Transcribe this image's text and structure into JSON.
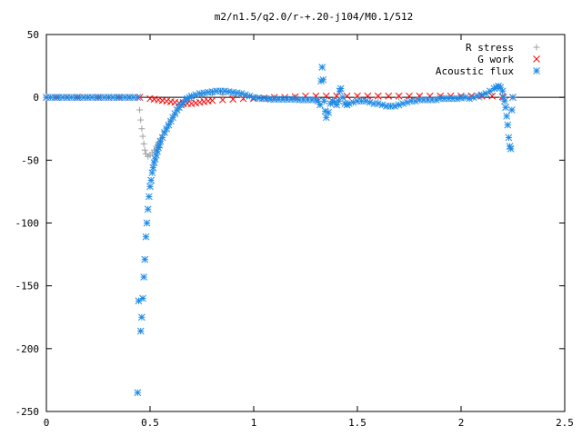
{
  "chart_data": {
    "type": "scatter",
    "title": "m2/n1.5/q2.0/r-+.20-j104/M0.1/512",
    "xlim": [
      0,
      2.5
    ],
    "ylim": [
      -250,
      50
    ],
    "x_ticks": [
      0,
      0.5,
      1,
      1.5,
      2,
      2.5
    ],
    "x_tick_labels": [
      "0",
      "0.5",
      "1",
      "1.5",
      "2",
      "2.5"
    ],
    "y_ticks": [
      50,
      0,
      -50,
      -100,
      -150,
      -200,
      -250
    ],
    "y_tick_labels": [
      "50",
      "0",
      "-50",
      "-100",
      "-150",
      "-200",
      "-250"
    ],
    "grid": false,
    "legend_position": "top-right",
    "series": [
      {
        "name": "R stress",
        "marker": "plus",
        "color": "#a0a0a0",
        "points": [
          [
            0.0,
            0
          ],
          [
            0.05,
            0
          ],
          [
            0.1,
            0
          ],
          [
            0.15,
            0
          ],
          [
            0.2,
            0
          ],
          [
            0.25,
            0
          ],
          [
            0.3,
            0
          ],
          [
            0.35,
            0
          ],
          [
            0.4,
            0
          ],
          [
            0.44,
            0
          ],
          [
            0.45,
            -10
          ],
          [
            0.455,
            -18
          ],
          [
            0.46,
            -25
          ],
          [
            0.465,
            -31
          ],
          [
            0.47,
            -37
          ],
          [
            0.475,
            -42
          ],
          [
            0.48,
            -45
          ],
          [
            0.49,
            -47
          ],
          [
            0.5,
            -46
          ],
          [
            0.51,
            -44
          ],
          [
            0.52,
            -42
          ],
          [
            0.53,
            -39
          ],
          [
            0.54,
            -36
          ],
          [
            0.55,
            -33
          ],
          [
            0.56,
            -30
          ],
          [
            0.57,
            -27
          ],
          [
            0.58,
            -24
          ],
          [
            0.59,
            -21
          ],
          [
            0.6,
            -18
          ],
          [
            0.62,
            -14
          ],
          [
            0.64,
            -10
          ],
          [
            0.66,
            -6
          ],
          [
            0.68,
            -3
          ],
          [
            0.7,
            -1
          ],
          [
            0.75,
            1
          ],
          [
            0.8,
            2
          ],
          [
            0.85,
            2
          ],
          [
            0.9,
            1
          ],
          [
            0.95,
            0
          ],
          [
            1.0,
            0
          ],
          [
            1.1,
            0
          ],
          [
            1.2,
            0
          ],
          [
            1.3,
            0
          ],
          [
            1.4,
            0
          ],
          [
            1.5,
            0
          ],
          [
            1.6,
            0
          ],
          [
            1.7,
            0
          ],
          [
            1.8,
            0
          ],
          [
            1.9,
            0
          ],
          [
            2.0,
            0
          ],
          [
            2.1,
            0
          ],
          [
            2.2,
            0
          ],
          [
            2.25,
            0
          ]
        ]
      },
      {
        "name": "G work",
        "marker": "cross",
        "color": "#ff0000",
        "points": [
          [
            0.0,
            0
          ],
          [
            0.05,
            0
          ],
          [
            0.1,
            0
          ],
          [
            0.15,
            0
          ],
          [
            0.2,
            0
          ],
          [
            0.25,
            0
          ],
          [
            0.3,
            0
          ],
          [
            0.35,
            0
          ],
          [
            0.4,
            0
          ],
          [
            0.45,
            0
          ],
          [
            0.5,
            -1
          ],
          [
            0.52,
            -1.5
          ],
          [
            0.54,
            -2
          ],
          [
            0.56,
            -2.5
          ],
          [
            0.58,
            -3
          ],
          [
            0.6,
            -3.5
          ],
          [
            0.62,
            -4
          ],
          [
            0.64,
            -4.5
          ],
          [
            0.66,
            -5
          ],
          [
            0.68,
            -5
          ],
          [
            0.7,
            -5
          ],
          [
            0.72,
            -4.5
          ],
          [
            0.74,
            -4
          ],
          [
            0.76,
            -3.5
          ],
          [
            0.78,
            -3
          ],
          [
            0.8,
            -2.5
          ],
          [
            0.85,
            -2
          ],
          [
            0.9,
            -1.5
          ],
          [
            0.95,
            -1
          ],
          [
            1.0,
            -1
          ],
          [
            1.05,
            -0.5
          ],
          [
            1.1,
            0
          ],
          [
            1.15,
            0
          ],
          [
            1.2,
            0.5
          ],
          [
            1.25,
            1
          ],
          [
            1.3,
            1
          ],
          [
            1.35,
            1
          ],
          [
            1.4,
            1
          ],
          [
            1.45,
            1
          ],
          [
            1.5,
            1
          ],
          [
            1.55,
            1
          ],
          [
            1.6,
            1
          ],
          [
            1.65,
            1
          ],
          [
            1.7,
            1
          ],
          [
            1.75,
            1
          ],
          [
            1.8,
            1
          ],
          [
            1.85,
            1
          ],
          [
            1.9,
            1
          ],
          [
            1.95,
            1
          ],
          [
            2.0,
            1
          ],
          [
            2.05,
            1
          ],
          [
            2.1,
            1
          ],
          [
            2.15,
            1
          ],
          [
            2.2,
            0.5
          ],
          [
            2.25,
            0
          ]
        ]
      },
      {
        "name": "Acoustic flux",
        "marker": "star",
        "color": "#1e8ae6",
        "points": [
          [
            0.0,
            0
          ],
          [
            0.02,
            0
          ],
          [
            0.04,
            0
          ],
          [
            0.06,
            0
          ],
          [
            0.08,
            0
          ],
          [
            0.1,
            0
          ],
          [
            0.12,
            0
          ],
          [
            0.14,
            0
          ],
          [
            0.16,
            0
          ],
          [
            0.18,
            0
          ],
          [
            0.2,
            0
          ],
          [
            0.22,
            0
          ],
          [
            0.24,
            0
          ],
          [
            0.26,
            0
          ],
          [
            0.28,
            0
          ],
          [
            0.3,
            0
          ],
          [
            0.32,
            0
          ],
          [
            0.34,
            0
          ],
          [
            0.36,
            0
          ],
          [
            0.38,
            0
          ],
          [
            0.4,
            0
          ],
          [
            0.42,
            0
          ],
          [
            0.44,
            0
          ],
          [
            0.44,
            -235
          ],
          [
            0.445,
            -162
          ],
          [
            0.455,
            -186
          ],
          [
            0.46,
            -175
          ],
          [
            0.465,
            -160
          ],
          [
            0.47,
            -143
          ],
          [
            0.475,
            -129
          ],
          [
            0.48,
            -111
          ],
          [
            0.485,
            -100
          ],
          [
            0.49,
            -89
          ],
          [
            0.495,
            -79
          ],
          [
            0.5,
            -71
          ],
          [
            0.505,
            -66
          ],
          [
            0.51,
            -60
          ],
          [
            0.515,
            -56
          ],
          [
            0.52,
            -52
          ],
          [
            0.525,
            -49
          ],
          [
            0.53,
            -46
          ],
          [
            0.535,
            -43
          ],
          [
            0.54,
            -40
          ],
          [
            0.545,
            -38
          ],
          [
            0.55,
            -35
          ],
          [
            0.56,
            -32
          ],
          [
            0.57,
            -28
          ],
          [
            0.58,
            -25
          ],
          [
            0.59,
            -22
          ],
          [
            0.6,
            -19
          ],
          [
            0.61,
            -16
          ],
          [
            0.62,
            -13
          ],
          [
            0.63,
            -10
          ],
          [
            0.64,
            -8
          ],
          [
            0.65,
            -6
          ],
          [
            0.66,
            -4
          ],
          [
            0.67,
            -2
          ],
          [
            0.68,
            -1
          ],
          [
            0.69,
            0
          ],
          [
            0.7,
            1
          ],
          [
            0.72,
            2
          ],
          [
            0.74,
            3
          ],
          [
            0.76,
            3.5
          ],
          [
            0.78,
            4
          ],
          [
            0.8,
            4.5
          ],
          [
            0.82,
            5
          ],
          [
            0.84,
            5
          ],
          [
            0.86,
            5
          ],
          [
            0.88,
            4.5
          ],
          [
            0.9,
            4
          ],
          [
            0.92,
            3.5
          ],
          [
            0.94,
            3
          ],
          [
            0.96,
            2
          ],
          [
            0.98,
            1
          ],
          [
            1.0,
            0
          ],
          [
            1.02,
            -0.5
          ],
          [
            1.04,
            -1
          ],
          [
            1.06,
            -1
          ],
          [
            1.08,
            -1.5
          ],
          [
            1.1,
            -1.5
          ],
          [
            1.12,
            -1.5
          ],
          [
            1.14,
            -1.5
          ],
          [
            1.16,
            -1.5
          ],
          [
            1.18,
            -1.5
          ],
          [
            1.2,
            -1.5
          ],
          [
            1.22,
            -2
          ],
          [
            1.24,
            -2
          ],
          [
            1.26,
            -2
          ],
          [
            1.28,
            -2
          ],
          [
            1.3,
            -2
          ],
          [
            1.31,
            -3
          ],
          [
            1.32,
            -6
          ],
          [
            1.325,
            13
          ],
          [
            1.33,
            24
          ],
          [
            1.335,
            14
          ],
          [
            1.34,
            -3
          ],
          [
            1.345,
            -11
          ],
          [
            1.35,
            -16
          ],
          [
            1.36,
            -12
          ],
          [
            1.37,
            -5
          ],
          [
            1.38,
            -3
          ],
          [
            1.39,
            -4
          ],
          [
            1.4,
            -6
          ],
          [
            1.41,
            -3
          ],
          [
            1.415,
            5
          ],
          [
            1.42,
            7
          ],
          [
            1.43,
            0
          ],
          [
            1.44,
            -5
          ],
          [
            1.45,
            -6
          ],
          [
            1.46,
            -5
          ],
          [
            1.48,
            -4
          ],
          [
            1.5,
            -3
          ],
          [
            1.52,
            -3
          ],
          [
            1.54,
            -3
          ],
          [
            1.56,
            -4
          ],
          [
            1.58,
            -5
          ],
          [
            1.6,
            -5
          ],
          [
            1.62,
            -6
          ],
          [
            1.64,
            -7
          ],
          [
            1.66,
            -7
          ],
          [
            1.68,
            -7
          ],
          [
            1.7,
            -6
          ],
          [
            1.72,
            -5
          ],
          [
            1.74,
            -4
          ],
          [
            1.76,
            -3
          ],
          [
            1.78,
            -3
          ],
          [
            1.8,
            -2
          ],
          [
            1.82,
            -2
          ],
          [
            1.84,
            -2
          ],
          [
            1.86,
            -2
          ],
          [
            1.88,
            -2
          ],
          [
            1.9,
            -1
          ],
          [
            1.92,
            -1
          ],
          [
            1.94,
            -1
          ],
          [
            1.96,
            -1
          ],
          [
            1.98,
            -1
          ],
          [
            2.0,
            -0.5
          ],
          [
            2.02,
            0
          ],
          [
            2.04,
            -1
          ],
          [
            2.06,
            0
          ],
          [
            2.08,
            1
          ],
          [
            2.1,
            2
          ],
          [
            2.12,
            3
          ],
          [
            2.14,
            5
          ],
          [
            2.16,
            7
          ],
          [
            2.17,
            8
          ],
          [
            2.18,
            9
          ],
          [
            2.19,
            8
          ],
          [
            2.2,
            5
          ],
          [
            2.205,
            0
          ],
          [
            2.21,
            -3
          ],
          [
            2.215,
            -8
          ],
          [
            2.22,
            -15
          ],
          [
            2.225,
            -22
          ],
          [
            2.23,
            -32
          ],
          [
            2.235,
            -39
          ],
          [
            2.24,
            -41
          ],
          [
            2.245,
            -10
          ],
          [
            2.25,
            0
          ]
        ]
      }
    ]
  }
}
